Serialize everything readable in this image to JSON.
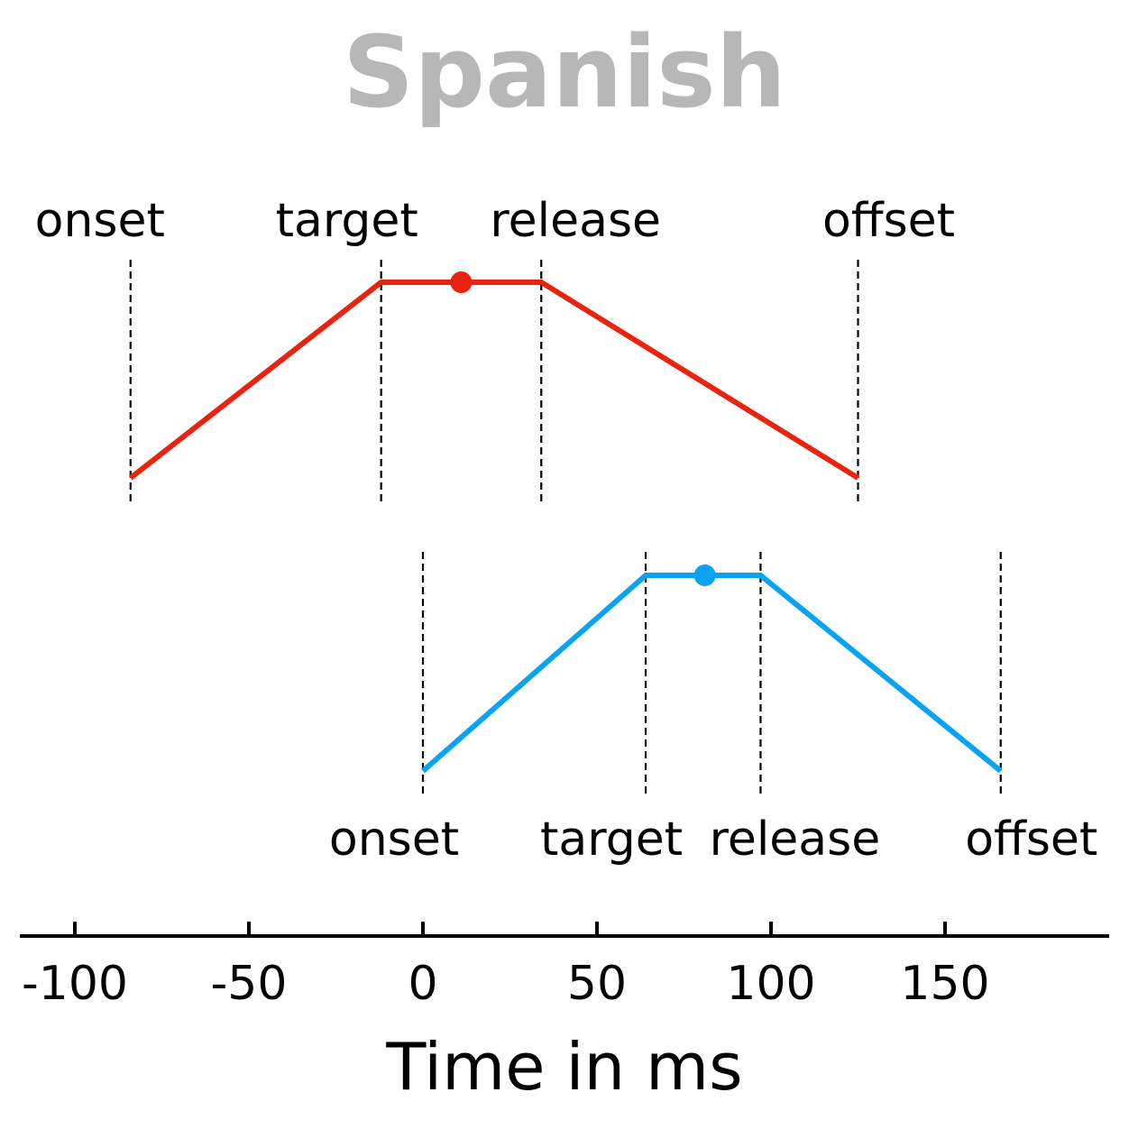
{
  "title": "Spanish",
  "axis": {
    "label": "Time in ms",
    "ticks": [
      -100,
      -50,
      0,
      50,
      100,
      150
    ],
    "range": [
      -116,
      197
    ]
  },
  "gestures": [
    {
      "color": "#e8230f",
      "label_position": "above",
      "points": [
        {
          "label": "onset",
          "time": -84
        },
        {
          "label": "target",
          "time": -12
        },
        {
          "label": "release",
          "time": 34
        },
        {
          "label": "offset",
          "time": 125
        }
      ],
      "midpoint_time": 11
    },
    {
      "color": "#0aa3f2",
      "label_position": "below",
      "points": [
        {
          "label": "onset",
          "time": 0
        },
        {
          "label": "target",
          "time": 64
        },
        {
          "label": "release",
          "time": 97
        },
        {
          "label": "offset",
          "time": 166
        }
      ],
      "midpoint_time": 81
    }
  ]
}
